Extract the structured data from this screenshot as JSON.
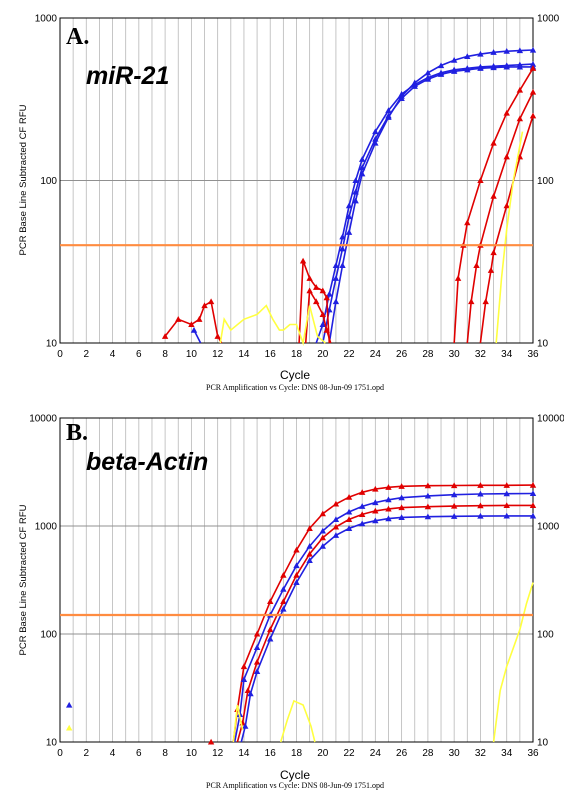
{
  "chart_data": [
    {
      "type": "line",
      "panel_label": "A.",
      "gene_label": "miR-21",
      "ylabel": "PCR Base Line Subtracted CF RFU",
      "xlabel": "Cycle",
      "footer": "PCR Amplification vs Cycle: DNS 08-Jun-09 1751.opd",
      "xlim": [
        0,
        36
      ],
      "ylim": [
        10,
        1000
      ],
      "yscale": "log",
      "x_ticks": [
        "0",
        "2",
        "4",
        "6",
        "8",
        "10",
        "12",
        "14",
        "16",
        "18",
        "20",
        "22",
        "24",
        "26",
        "28",
        "30",
        "32",
        "34",
        "36"
      ],
      "y_ticks": [
        "10",
        "100",
        "1000"
      ],
      "y_tick_values": [
        10,
        100,
        1000
      ],
      "threshold": 40,
      "colors": {
        "threshold": "#ff8c40",
        "blue": "#2020e0",
        "red": "#e00000",
        "yellow": "#ffff40",
        "grid": "#b8b8b8"
      },
      "series": [
        {
          "color": "blue",
          "points": [
            [
              19.5,
              10
            ],
            [
              20,
              13
            ],
            [
              20.5,
              20
            ],
            [
              21,
              30
            ],
            [
              21.5,
              45
            ],
            [
              22,
              70
            ],
            [
              22.5,
              100
            ],
            [
              23,
              135
            ],
            [
              24,
              200
            ],
            [
              25,
              270
            ],
            [
              26,
              340
            ],
            [
              27,
              390
            ],
            [
              28,
              430
            ],
            [
              29,
              460
            ],
            [
              30,
              480
            ],
            [
              31,
              490
            ],
            [
              32,
              500
            ],
            [
              33,
              505
            ],
            [
              34,
              510
            ],
            [
              35,
              515
            ],
            [
              36,
              520
            ]
          ]
        },
        {
          "color": "blue",
          "points": [
            [
              20,
              10
            ],
            [
              20.5,
              16
            ],
            [
              21,
              25
            ],
            [
              21.5,
              38
            ],
            [
              22,
              60
            ],
            [
              22.5,
              85
            ],
            [
              23,
              120
            ],
            [
              24,
              180
            ],
            [
              25,
              250
            ],
            [
              26,
              320
            ],
            [
              27,
              380
            ],
            [
              28,
              420
            ],
            [
              29,
              450
            ],
            [
              30,
              470
            ],
            [
              31,
              480
            ],
            [
              32,
              490
            ],
            [
              33,
              495
            ],
            [
              34,
              500
            ],
            [
              35,
              500
            ],
            [
              36,
              500
            ]
          ]
        },
        {
          "color": "blue",
          "points": [
            [
              20.5,
              10
            ],
            [
              21,
              18
            ],
            [
              21.5,
              30
            ],
            [
              22,
              48
            ],
            [
              22.5,
              75
            ],
            [
              23,
              110
            ],
            [
              24,
              170
            ],
            [
              25,
              245
            ],
            [
              26,
              330
            ],
            [
              27,
              400
            ],
            [
              28,
              460
            ],
            [
              29,
              510
            ],
            [
              30,
              550
            ],
            [
              31,
              580
            ],
            [
              32,
              600
            ],
            [
              33,
              615
            ],
            [
              34,
              625
            ],
            [
              35,
              630
            ],
            [
              36,
              635
            ]
          ]
        },
        {
          "color": "red",
          "points": [
            [
              30,
              10
            ],
            [
              30.3,
              25
            ],
            [
              30.7,
              40
            ],
            [
              31,
              55
            ],
            [
              32,
              100
            ],
            [
              33,
              170
            ],
            [
              34,
              260
            ],
            [
              35,
              360
            ],
            [
              36,
              490
            ]
          ]
        },
        {
          "color": "red",
          "points": [
            [
              31,
              10
            ],
            [
              31.3,
              18
            ],
            [
              31.7,
              30
            ],
            [
              32,
              40
            ],
            [
              33,
              80
            ],
            [
              34,
              140
            ],
            [
              35,
              240
            ],
            [
              36,
              350
            ]
          ]
        },
        {
          "color": "red",
          "points": [
            [
              32,
              10
            ],
            [
              32.4,
              18
            ],
            [
              32.8,
              28
            ],
            [
              33,
              36
            ],
            [
              34,
              70
            ],
            [
              35,
              140
            ],
            [
              36,
              250
            ]
          ]
        },
        {
          "color": "red",
          "points": [
            [
              8,
              11
            ],
            [
              9,
              14
            ],
            [
              10,
              13
            ],
            [
              10.6,
              14
            ],
            [
              11,
              17
            ],
            [
              11.5,
              18
            ],
            [
              12,
              11
            ],
            [
              12.3,
              10
            ]
          ]
        },
        {
          "color": "red",
          "points": [
            [
              18.2,
              10
            ],
            [
              18.5,
              32
            ],
            [
              19,
              25
            ],
            [
              19.5,
              22
            ],
            [
              20,
              21
            ],
            [
              20.3,
              19
            ],
            [
              20.5,
              10
            ]
          ]
        },
        {
          "color": "red",
          "points": [
            [
              18.7,
              10
            ],
            [
              19,
              21
            ],
            [
              19.5,
              18
            ],
            [
              20,
              15
            ],
            [
              20.3,
              12
            ],
            [
              20.6,
              10
            ]
          ]
        },
        {
          "color": "blue",
          "points": [
            [
              10.2,
              12
            ],
            [
              10.7,
              10
            ]
          ]
        },
        {
          "color": "yellow",
          "points": [
            [
              12.2,
              10
            ],
            [
              12.5,
              14
            ],
            [
              13,
              12
            ],
            [
              14,
              14
            ],
            [
              15,
              15
            ],
            [
              15.7,
              17
            ],
            [
              16.2,
              14
            ],
            [
              16.7,
              12
            ],
            [
              17,
              12
            ],
            [
              17.5,
              13
            ],
            [
              18,
              13
            ],
            [
              18.5,
              10
            ],
            [
              19,
              17
            ],
            [
              19.6,
              11
            ],
            [
              20.2,
              10
            ]
          ]
        },
        {
          "color": "yellow",
          "points": [
            [
              33.2,
              10
            ],
            [
              33.6,
              25
            ],
            [
              34,
              50
            ],
            [
              34.5,
              100
            ],
            [
              35.2,
              200
            ]
          ]
        }
      ]
    },
    {
      "type": "line",
      "panel_label": "B.",
      "gene_label": "beta-Actin",
      "ylabel": "PCR Base Line Subtracted CF RFU",
      "xlabel": "Cycle",
      "footer": "PCR Amplification vs Cycle: DNS 08-Jun-09 1751.opd",
      "xlim": [
        0,
        36
      ],
      "ylim": [
        10,
        10000
      ],
      "yscale": "log",
      "x_ticks": [
        "0",
        "2",
        "4",
        "6",
        "8",
        "10",
        "12",
        "14",
        "16",
        "18",
        "20",
        "22",
        "24",
        "26",
        "28",
        "30",
        "32",
        "34",
        "36"
      ],
      "y_ticks": [
        "10",
        "100",
        "1000",
        "10000"
      ],
      "y_tick_values": [
        10,
        100,
        1000,
        10000
      ],
      "threshold": 150,
      "colors": {
        "threshold": "#ff8c40",
        "blue": "#2020e0",
        "red": "#e00000",
        "yellow": "#ffff40",
        "grid": "#b8b8b8"
      },
      "series": [
        {
          "color": "red",
          "points": [
            [
              13.2,
              10
            ],
            [
              13.5,
              20
            ],
            [
              14,
              50
            ],
            [
              15,
              100
            ],
            [
              16,
              200
            ],
            [
              17,
              350
            ],
            [
              18,
              600
            ],
            [
              19,
              950
            ],
            [
              20,
              1300
            ],
            [
              21,
              1600
            ],
            [
              22,
              1850
            ],
            [
              23,
              2050
            ],
            [
              24,
              2200
            ],
            [
              25,
              2280
            ],
            [
              26,
              2330
            ],
            [
              28,
              2360
            ],
            [
              30,
              2370
            ],
            [
              32,
              2380
            ],
            [
              34,
              2380
            ],
            [
              36,
              2390
            ]
          ]
        },
        {
          "color": "blue",
          "points": [
            [
              13.3,
              10
            ],
            [
              13.7,
              18
            ],
            [
              14,
              38
            ],
            [
              15,
              75
            ],
            [
              16,
              150
            ],
            [
              17,
              260
            ],
            [
              18,
              430
            ],
            [
              19,
              650
            ],
            [
              20,
              900
            ],
            [
              21,
              1150
            ],
            [
              22,
              1350
            ],
            [
              23,
              1520
            ],
            [
              24,
              1650
            ],
            [
              25,
              1750
            ],
            [
              26,
              1830
            ],
            [
              28,
              1900
            ],
            [
              30,
              1950
            ],
            [
              32,
              1980
            ],
            [
              34,
              1990
            ],
            [
              36,
              2000
            ]
          ]
        },
        {
          "color": "red",
          "points": [
            [
              13.5,
              10
            ],
            [
              13.9,
              15
            ],
            [
              14.3,
              30
            ],
            [
              15,
              55
            ],
            [
              16,
              110
            ],
            [
              17,
              200
            ],
            [
              18,
              350
            ],
            [
              19,
              550
            ],
            [
              20,
              780
            ],
            [
              21,
              980
            ],
            [
              22,
              1150
            ],
            [
              23,
              1280
            ],
            [
              24,
              1380
            ],
            [
              25,
              1440
            ],
            [
              26,
              1480
            ],
            [
              28,
              1510
            ],
            [
              30,
              1530
            ],
            [
              32,
              1540
            ],
            [
              34,
              1550
            ],
            [
              36,
              1550
            ]
          ]
        },
        {
          "color": "blue",
          "points": [
            [
              13.8,
              10
            ],
            [
              14.1,
              14
            ],
            [
              14.5,
              28
            ],
            [
              15,
              45
            ],
            [
              16,
              90
            ],
            [
              17,
              170
            ],
            [
              18,
              300
            ],
            [
              19,
              480
            ],
            [
              20,
              650
            ],
            [
              21,
              820
            ],
            [
              22,
              950
            ],
            [
              23,
              1050
            ],
            [
              24,
              1120
            ],
            [
              25,
              1170
            ],
            [
              26,
              1200
            ],
            [
              28,
              1220
            ],
            [
              30,
              1230
            ],
            [
              32,
              1235
            ],
            [
              34,
              1240
            ],
            [
              36,
              1240
            ]
          ]
        },
        {
          "color": "yellow",
          "points": [
            [
              13.2,
              10
            ],
            [
              13.5,
              22
            ],
            [
              13.9,
              13
            ]
          ]
        },
        {
          "color": "yellow",
          "points": [
            [
              16.8,
              10
            ],
            [
              17.3,
              16
            ],
            [
              17.8,
              24
            ],
            [
              18.5,
              22
            ],
            [
              19.1,
              14
            ],
            [
              19.4,
              10
            ]
          ]
        },
        {
          "color": "yellow",
          "points": [
            [
              33,
              10
            ],
            [
              33.5,
              30
            ],
            [
              34,
              50
            ],
            [
              35,
              110
            ],
            [
              35.5,
              190
            ],
            [
              36,
              300
            ]
          ]
        }
      ],
      "markers": [
        {
          "color": "blue",
          "x": 0.7,
          "y": 22
        },
        {
          "color": "yellow",
          "x": 0.7,
          "y": 13.5
        },
        {
          "color": "red",
          "x": 11.5,
          "y": 10
        }
      ]
    }
  ]
}
